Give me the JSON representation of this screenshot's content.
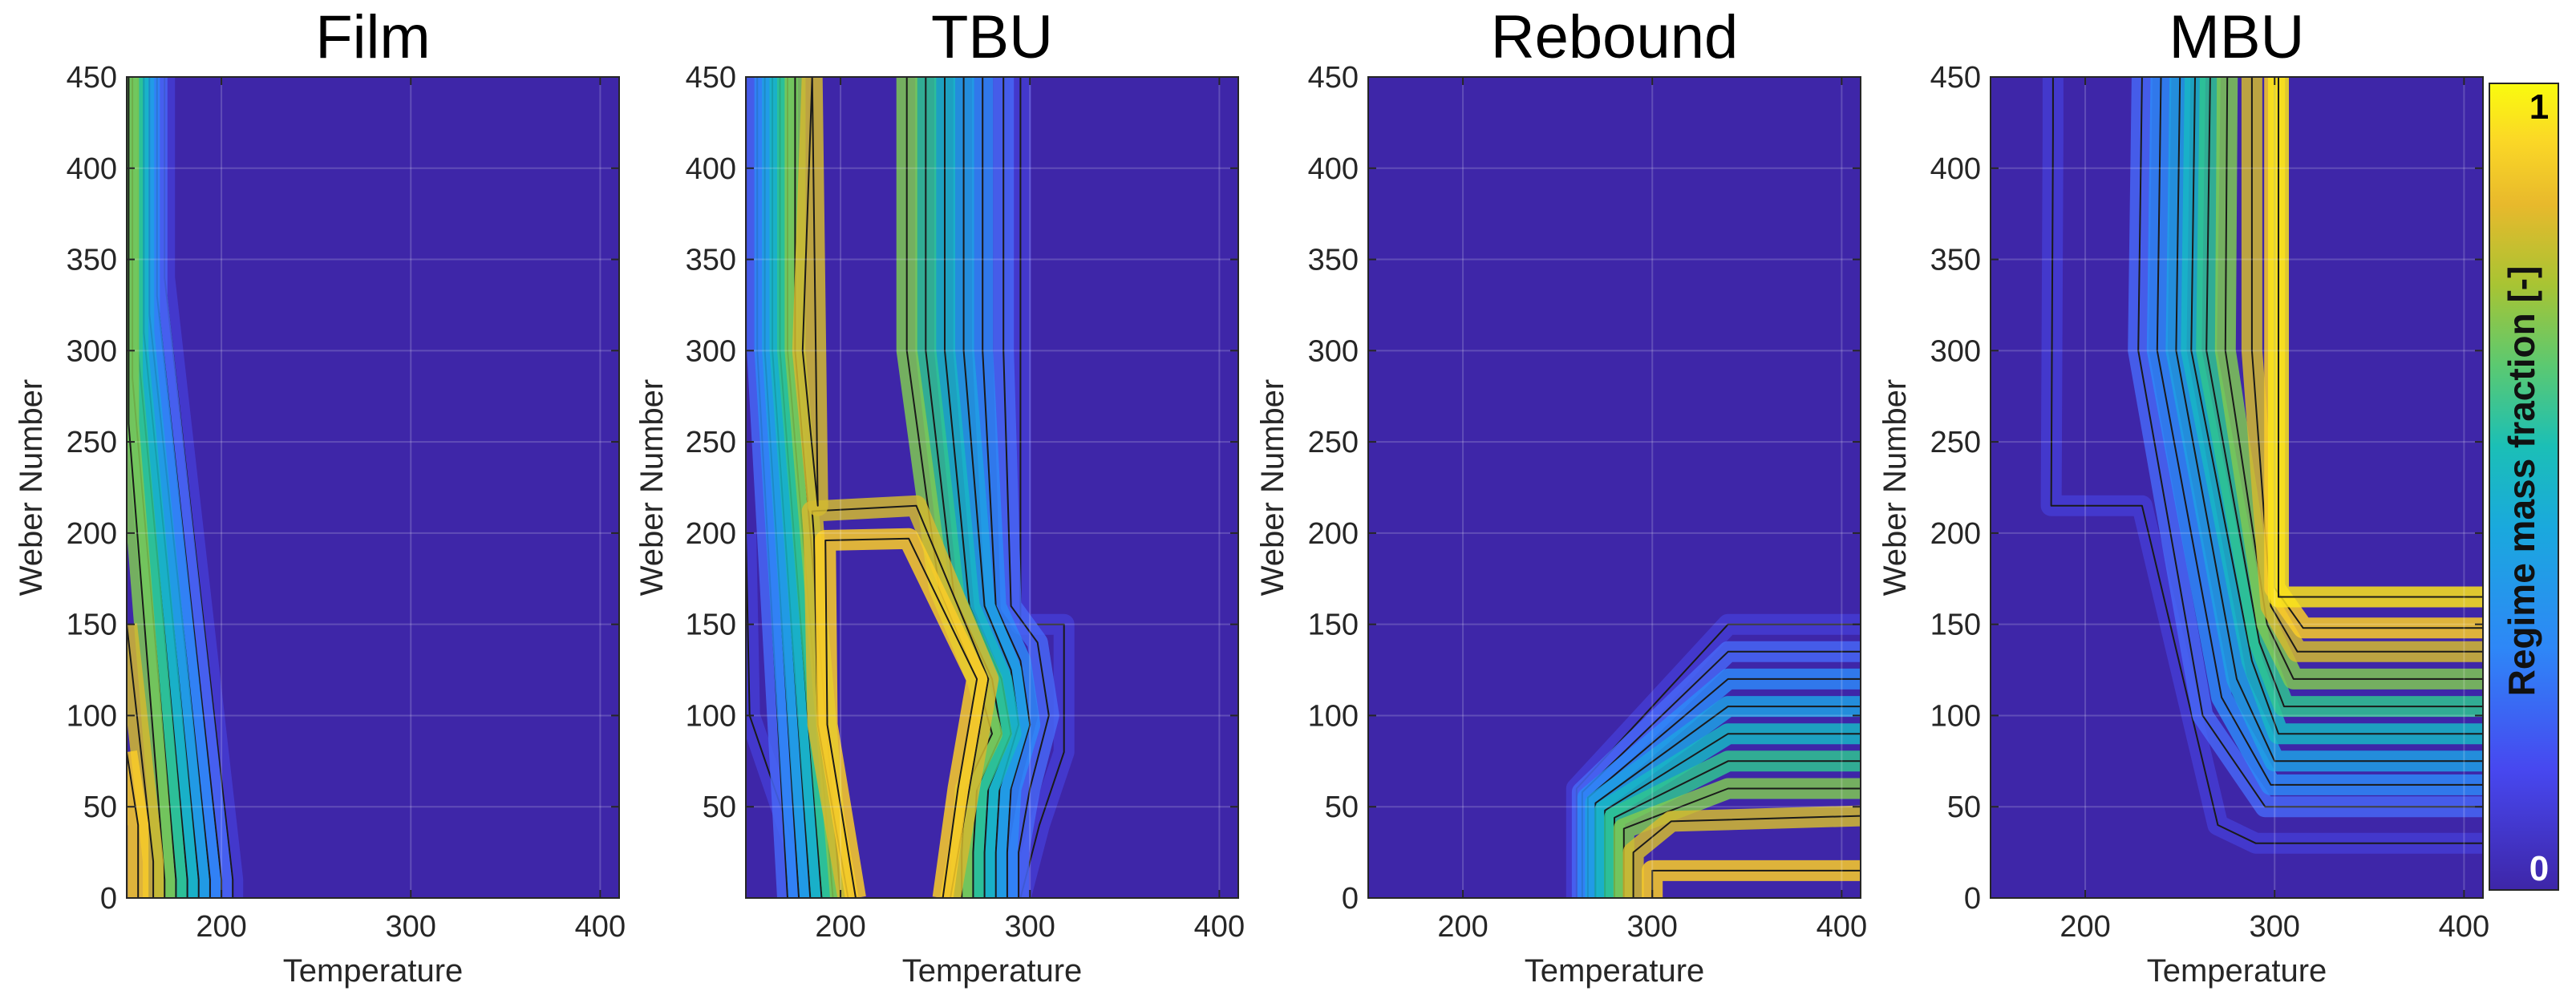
{
  "chart_data": [
    {
      "type": "contour",
      "title": "Film",
      "xlabel": "Temperature",
      "ylabel": "Weber Number",
      "xlim": [
        150,
        410
      ],
      "ylim": [
        0,
        450
      ],
      "xticks": [
        200,
        300,
        400
      ],
      "yticks": [
        0,
        50,
        100,
        150,
        200,
        250,
        300,
        350,
        400,
        450
      ],
      "contours": [
        {
          "level": 0.1,
          "points": [
            [
              206,
              0
            ],
            [
              206,
              10
            ],
            [
              170,
              340
            ],
            [
              170,
              450
            ]
          ]
        },
        {
          "level": 0.2,
          "points": [
            [
              200,
              0
            ],
            [
              200,
              10
            ],
            [
              166,
              330
            ],
            [
              166,
              450
            ]
          ]
        },
        {
          "level": 0.3,
          "points": [
            [
              194,
              0
            ],
            [
              194,
              10
            ],
            [
              162,
              320
            ],
            [
              162,
              450
            ]
          ]
        },
        {
          "level": 0.4,
          "points": [
            [
              188,
              0
            ],
            [
              188,
              10
            ],
            [
              159,
              310
            ],
            [
              159,
              450
            ]
          ]
        },
        {
          "level": 0.5,
          "points": [
            [
              182,
              0
            ],
            [
              182,
              10
            ],
            [
              156,
              300
            ],
            [
              156,
              450
            ]
          ]
        },
        {
          "level": 0.6,
          "points": [
            [
              176,
              0
            ],
            [
              176,
              10
            ],
            [
              153,
              285
            ],
            [
              153,
              450
            ]
          ]
        },
        {
          "level": 0.7,
          "points": [
            [
              170,
              0
            ],
            [
              170,
              10
            ],
            [
              151,
              260
            ],
            [
              151,
              450
            ]
          ]
        },
        {
          "level": 0.8,
          "points": [
            [
              164,
              0
            ],
            [
              164,
              20
            ],
            [
              150,
              150
            ]
          ]
        },
        {
          "level": 0.9,
          "points": [
            [
              156,
              0
            ],
            [
              156,
              40
            ],
            [
              150,
              80
            ]
          ]
        }
      ]
    },
    {
      "type": "contour",
      "title": "TBU",
      "xlabel": "Temperature",
      "ylabel": "Weber Number",
      "xlim": [
        150,
        410
      ],
      "ylim": [
        0,
        450
      ],
      "xticks": [
        200,
        300,
        400
      ],
      "yticks": [
        50,
        100,
        150,
        200,
        250,
        300,
        350,
        400,
        450
      ],
      "contours": [
        {
          "level": 0.1,
          "points": [
            [
              185,
              0
            ],
            [
              152,
              100
            ],
            [
              150,
              200
            ]
          ]
        },
        {
          "level": 0.1,
          "points": [
            [
              295,
              450
            ],
            [
              295,
              300
            ],
            [
              295,
              150
            ],
            [
              318,
              150
            ],
            [
              318,
              80
            ],
            [
              305,
              40
            ],
            [
              295,
              0
            ]
          ]
        },
        {
          "level": 0.2,
          "points": [
            [
              172,
              0
            ],
            [
              156,
              300
            ],
            [
              156,
              450
            ]
          ]
        },
        {
          "level": 0.2,
          "points": [
            [
              286,
              450
            ],
            [
              286,
              300
            ],
            [
              290,
              160
            ],
            [
              304,
              140
            ],
            [
              310,
              100
            ],
            [
              300,
              60
            ],
            [
              294,
              25
            ],
            [
              294,
              0
            ]
          ]
        },
        {
          "level": 0.3,
          "points": [
            [
              178,
              0
            ],
            [
              160,
              300
            ],
            [
              160,
              450
            ]
          ]
        },
        {
          "level": 0.3,
          "points": [
            [
              275,
              450
            ],
            [
              275,
              300
            ],
            [
              282,
              160
            ],
            [
              295,
              130
            ],
            [
              300,
              95
            ],
            [
              290,
              60
            ],
            [
              288,
              25
            ],
            [
              288,
              0
            ]
          ]
        },
        {
          "level": 0.4,
          "points": [
            [
              184,
              0
            ],
            [
              164,
              300
            ],
            [
              164,
              450
            ]
          ]
        },
        {
          "level": 0.4,
          "points": [
            [
              265,
              450
            ],
            [
              265,
              300
            ],
            [
              276,
              160
            ],
            [
              290,
              125
            ],
            [
              294,
              95
            ],
            [
              284,
              60
            ],
            [
              282,
              25
            ],
            [
              282,
              0
            ]
          ]
        },
        {
          "level": 0.5,
          "points": [
            [
              190,
              0
            ],
            [
              168,
              300
            ],
            [
              168,
              450
            ]
          ]
        },
        {
          "level": 0.5,
          "points": [
            [
              255,
              450
            ],
            [
              255,
              300
            ],
            [
              268,
              160
            ],
            [
              285,
              120
            ],
            [
              290,
              90
            ],
            [
              278,
              60
            ],
            [
              276,
              25
            ],
            [
              276,
              0
            ]
          ]
        },
        {
          "level": 0.6,
          "points": [
            [
              196,
              0
            ],
            [
              172,
              300
            ],
            [
              172,
              450
            ]
          ]
        },
        {
          "level": 0.6,
          "points": [
            [
              245,
              450
            ],
            [
              245,
              300
            ],
            [
              260,
              165
            ],
            [
              280,
              120
            ],
            [
              285,
              90
            ],
            [
              272,
              60
            ],
            [
              270,
              25
            ],
            [
              270,
              0
            ]
          ]
        },
        {
          "level": 0.7,
          "points": [
            [
              200,
              0
            ],
            [
              176,
              300
            ],
            [
              176,
              450
            ]
          ]
        },
        {
          "level": 0.7,
          "points": [
            [
              235,
              450
            ],
            [
              235,
              300
            ],
            [
              252,
              170
            ],
            [
              272,
              120
            ],
            [
              280,
              90
            ],
            [
              266,
              60
            ],
            [
              264,
              25
            ],
            [
              264,
              0
            ]
          ]
        },
        {
          "level": 0.8,
          "points": [
            [
              204,
              0
            ],
            [
              188,
              95
            ],
            [
              186,
              198
            ],
            [
              185,
              212
            ],
            [
              240,
              215
            ],
            [
              278,
              120
            ],
            [
              268,
              60
            ],
            [
              258,
              0
            ]
          ]
        },
        {
          "level": 0.9,
          "points": [
            [
              208,
              0
            ],
            [
              193,
              95
            ],
            [
              192,
              196
            ],
            [
              236,
              197
            ],
            [
              272,
              120
            ],
            [
              262,
              60
            ],
            [
              254,
              0
            ]
          ]
        },
        {
          "level": 0.8,
          "points": [
            [
              185,
              450
            ],
            [
              180,
              300
            ],
            [
              188,
              215
            ],
            [
              185,
              450
            ]
          ]
        }
      ]
    },
    {
      "type": "contour",
      "title": "Rebound",
      "xlabel": "Temperature",
      "ylabel": "Weber Number",
      "xlim": [
        150,
        410
      ],
      "ylim": [
        0,
        450
      ],
      "xticks": [
        200,
        300,
        400
      ],
      "yticks": [
        0,
        50,
        100,
        150,
        200,
        250,
        300,
        350,
        400,
        450
      ],
      "contours": [
        {
          "level": 0.1,
          "points": [
            [
              260,
              0
            ],
            [
              260,
              60
            ],
            [
              340,
              150
            ],
            [
              410,
              150
            ]
          ]
        },
        {
          "level": 0.2,
          "points": [
            [
              263,
              0
            ],
            [
              263,
              58
            ],
            [
              340,
              135
            ],
            [
              410,
              135
            ]
          ]
        },
        {
          "level": 0.3,
          "points": [
            [
              266,
              0
            ],
            [
              266,
              55
            ],
            [
              340,
              120
            ],
            [
              410,
              120
            ]
          ]
        },
        {
          "level": 0.4,
          "points": [
            [
              270,
              0
            ],
            [
              270,
              52
            ],
            [
              340,
              105
            ],
            [
              410,
              105
            ]
          ]
        },
        {
          "level": 0.5,
          "points": [
            [
              275,
              0
            ],
            [
              275,
              48
            ],
            [
              340,
              90
            ],
            [
              410,
              90
            ]
          ]
        },
        {
          "level": 0.6,
          "points": [
            [
              280,
              0
            ],
            [
              280,
              44
            ],
            [
              340,
              75
            ],
            [
              410,
              75
            ]
          ]
        },
        {
          "level": 0.7,
          "points": [
            [
              285,
              0
            ],
            [
              285,
              38
            ],
            [
              340,
              60
            ],
            [
              410,
              60
            ]
          ]
        },
        {
          "level": 0.8,
          "points": [
            [
              290,
              0
            ],
            [
              290,
              25
            ],
            [
              310,
              42
            ],
            [
              410,
              45
            ]
          ]
        },
        {
          "level": 0.9,
          "points": [
            [
              300,
              0
            ],
            [
              300,
              15
            ],
            [
              410,
              15
            ]
          ]
        }
      ]
    },
    {
      "type": "contour",
      "title": "MBU",
      "xlabel": "Temperature",
      "ylabel": "Weber Number",
      "xlim": [
        150,
        410
      ],
      "ylim": [
        0,
        450
      ],
      "xticks": [
        200,
        300,
        400
      ],
      "yticks": [
        0,
        50,
        100,
        150,
        200,
        250,
        300,
        350,
        400,
        450
      ],
      "contours": [
        {
          "level": 0.1,
          "points": [
            [
              183,
              450
            ],
            [
              183,
              420
            ],
            [
              182,
              215
            ],
            [
              230,
              215
            ],
            [
              270,
              40
            ],
            [
              290,
              30
            ],
            [
              410,
              30
            ]
          ]
        },
        {
          "level": 0.2,
          "points": [
            [
              230,
              450
            ],
            [
              228,
              300
            ],
            [
              262,
              100
            ],
            [
              295,
              50
            ],
            [
              410,
              50
            ]
          ]
        },
        {
          "level": 0.3,
          "points": [
            [
              240,
              450
            ],
            [
              238,
              300
            ],
            [
              272,
              110
            ],
            [
              298,
              62
            ],
            [
              410,
              62
            ]
          ]
        },
        {
          "level": 0.4,
          "points": [
            [
              250,
              450
            ],
            [
              248,
              300
            ],
            [
              280,
              120
            ],
            [
              300,
              75
            ],
            [
              410,
              75
            ]
          ]
        },
        {
          "level": 0.5,
          "points": [
            [
              258,
              450
            ],
            [
              256,
              300
            ],
            [
              288,
              130
            ],
            [
              302,
              90
            ],
            [
              410,
              90
            ]
          ]
        },
        {
          "level": 0.6,
          "points": [
            [
              266,
              450
            ],
            [
              264,
              300
            ],
            [
              292,
              140
            ],
            [
              305,
              105
            ],
            [
              410,
              105
            ]
          ]
        },
        {
          "level": 0.7,
          "points": [
            [
              275,
              450
            ],
            [
              274,
              300
            ],
            [
              296,
              150
            ],
            [
              310,
              120
            ],
            [
              410,
              120
            ]
          ]
        },
        {
          "level": 0.8,
          "points": [
            [
              288,
              450
            ],
            [
              288,
              300
            ],
            [
              298,
              160
            ],
            [
              312,
              135
            ],
            [
              410,
              135
            ]
          ]
        },
        {
          "level": 0.9,
          "points": [
            [
              300,
              450
            ],
            [
              300,
              300
            ],
            [
              300,
              170
            ],
            [
              315,
              148
            ],
            [
              410,
              148
            ]
          ]
        },
        {
          "level": 0.95,
          "points": [
            [
              302,
              450
            ],
            [
              302,
              165
            ],
            [
              410,
              165
            ]
          ]
        }
      ]
    }
  ],
  "colorbar": {
    "label": "Regime mass fraction [-]",
    "max_label": "1",
    "min_label": "0",
    "colors": [
      "#3e26a8",
      "#4748f0",
      "#2e87f7",
      "#1aa9dd",
      "#1bbfb6",
      "#5bc971",
      "#a8c433",
      "#e8b92c",
      "#fbd826",
      "#f9fb0e"
    ]
  }
}
